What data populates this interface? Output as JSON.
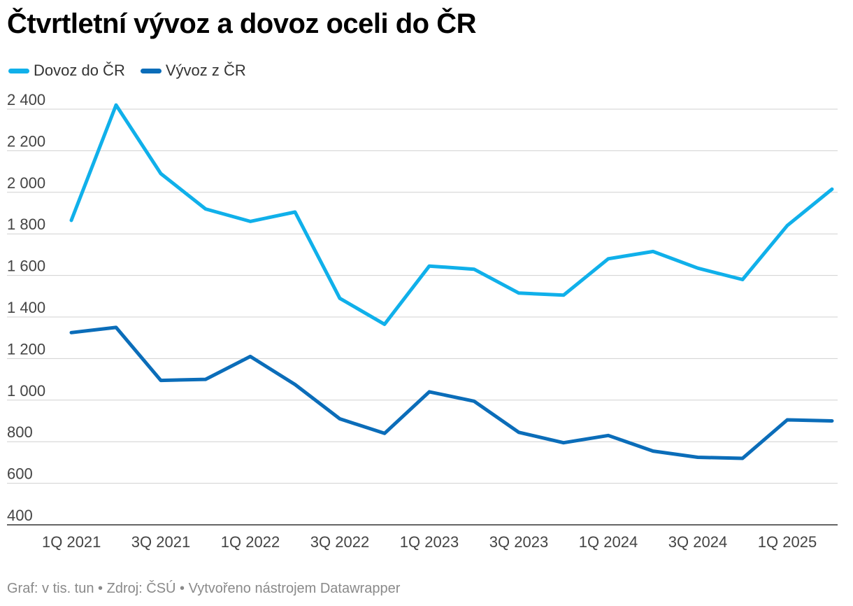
{
  "chart_data": {
    "type": "line",
    "title": "Čtvrtletní vývoz a dovoz oceli do ČR",
    "legend_position": "top-left",
    "grid": true,
    "ylim": [
      400,
      2400
    ],
    "y_ticks": [
      400,
      600,
      800,
      1000,
      1200,
      1400,
      1600,
      1800,
      2000,
      2200,
      2400
    ],
    "y_tick_labels": [
      "400",
      "600",
      "800",
      "1 000",
      "1 200",
      "1 400",
      "1 600",
      "1 800",
      "2 000",
      "2 200",
      "2 400"
    ],
    "x": [
      "1Q 2021",
      "2Q 2021",
      "3Q 2021",
      "4Q 2021",
      "1Q 2022",
      "2Q 2022",
      "3Q 2022",
      "4Q 2022",
      "1Q 2023",
      "2Q 2023",
      "3Q 2023",
      "4Q 2023",
      "1Q 2024",
      "2Q 2024",
      "3Q 2024",
      "4Q 2024",
      "1Q 2025",
      "2Q 2025"
    ],
    "x_tick_labels": [
      "1Q 2021",
      "",
      "3Q 2021",
      "",
      "1Q 2022",
      "",
      "3Q 2022",
      "",
      "1Q 2023",
      "",
      "3Q 2023",
      "",
      "1Q 2024",
      "",
      "3Q 2024",
      "",
      "1Q 2025",
      ""
    ],
    "series": [
      {
        "name": "Dovoz do ČR",
        "color": "#10b0ea",
        "values": [
          1865,
          2420,
          2090,
          1920,
          1860,
          1905,
          1490,
          1365,
          1645,
          1630,
          1515,
          1505,
          1680,
          1715,
          1635,
          1580,
          1840,
          2015
        ]
      },
      {
        "name": "Vývoz z ČR",
        "color": "#0b6db9",
        "values": [
          1325,
          1350,
          1095,
          1100,
          1210,
          1075,
          910,
          840,
          1040,
          995,
          845,
          795,
          830,
          755,
          725,
          720,
          905,
          900
        ]
      }
    ],
    "footer": "Graf: v tis. tun • Zdroj: ČSÚ • Vytvořeno nástrojem Datawrapper"
  }
}
